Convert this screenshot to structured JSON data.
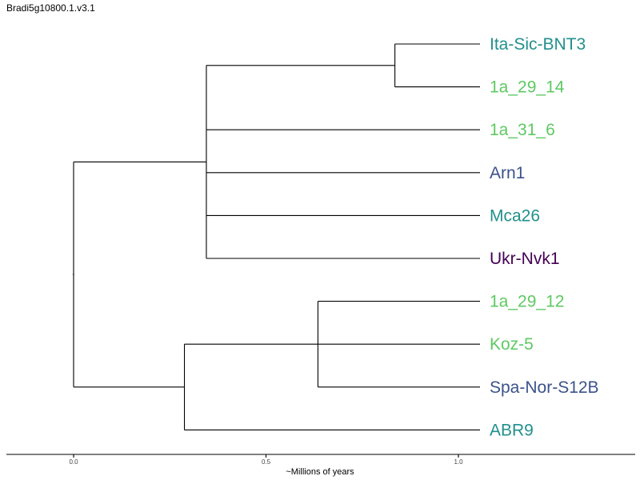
{
  "title": "Bradi5g10800.1.v3.1",
  "axis": {
    "label": "~Millions of years",
    "ticks": [
      {
        "value": 0.0,
        "label": "0.0"
      },
      {
        "value": 0.5,
        "label": "0.5"
      },
      {
        "value": 1.0,
        "label": "1.0"
      }
    ],
    "range": [
      -0.17,
      1.46
    ]
  },
  "colors": {
    "teal": "#21908c",
    "green": "#5ec962",
    "blue": "#3b528b",
    "purple": "#440154",
    "line": "#000000"
  },
  "tree": {
    "children": [
      {
        "height": 0.345,
        "children": [
          {
            "height": 0.835,
            "children": [
              {
                "label": "Ita-Sic-BNT3",
                "color": "#21908c"
              },
              {
                "label": "1a_29_14",
                "color": "#5ec962"
              }
            ]
          },
          {
            "label": "1a_31_6",
            "color": "#5ec962"
          },
          {
            "label": "Arn1",
            "color": "#3b528b"
          },
          {
            "label": "Mca26",
            "color": "#21908c"
          },
          {
            "label": "Ukr-Nvk1",
            "color": "#440154"
          }
        ]
      },
      {
        "height": 0.288,
        "children": [
          {
            "height": 0.635,
            "children": [
              {
                "label": "1a_29_12",
                "color": "#5ec962"
              },
              {
                "label": "Koz-5",
                "color": "#5ec962"
              },
              {
                "label": "Spa-Nor-S12B",
                "color": "#3b528b"
              }
            ]
          },
          {
            "label": "ABR9",
            "color": "#21908c"
          }
        ]
      }
    ]
  }
}
